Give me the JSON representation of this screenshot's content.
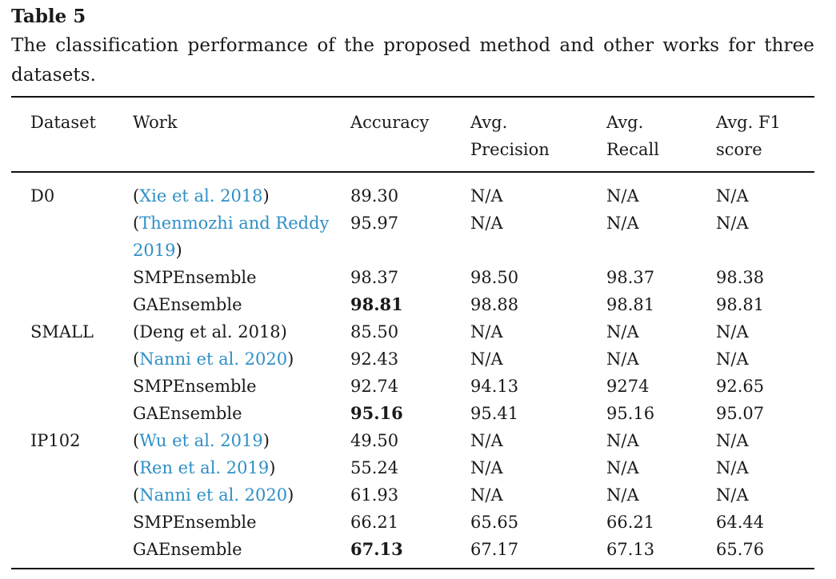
{
  "label": "Table 5",
  "caption": "The classification performance of the proposed method and other works for three datasets.",
  "headers": {
    "dataset": "Dataset",
    "work": "Work",
    "accuracy": "Accuracy",
    "precision_l1": "Avg.",
    "precision_l2": "Precision",
    "recall_l1": "Avg.",
    "recall_l2": "Recall",
    "f1_l1": "Avg. F1",
    "f1_l2": "score"
  },
  "rows": [
    {
      "dataset": "D0",
      "work_open": "(",
      "work_cite": "Xie et al. 2018",
      "work_close": ")",
      "accuracy": "89.30",
      "precision": "N/A",
      "recall": "N/A",
      "f1": "N/A"
    },
    {
      "dataset": "",
      "work_open": "(",
      "work_cite": "Thenmozhi and Reddy 2019",
      "work_close": ")",
      "accuracy": "95.97",
      "precision": "N/A",
      "recall": "N/A",
      "f1": "N/A"
    },
    {
      "dataset": "",
      "work_plain": "SMPEnsemble",
      "accuracy": "98.37",
      "precision": "98.50",
      "recall": "98.37",
      "f1": "98.38"
    },
    {
      "dataset": "",
      "work_plain": "GAEnsemble",
      "accuracy": "98.81",
      "accuracy_bold": true,
      "precision": "98.88",
      "recall": "98.81",
      "f1": "98.81"
    },
    {
      "dataset": "SMALL",
      "work_plain": "(Deng et al. 2018)",
      "accuracy": "85.50",
      "precision": "N/A",
      "recall": "N/A",
      "f1": "N/A"
    },
    {
      "dataset": "",
      "work_open": "(",
      "work_cite": "Nanni et al. 2020",
      "work_close": ")",
      "accuracy": "92.43",
      "precision": "N/A",
      "recall": "N/A",
      "f1": "N/A"
    },
    {
      "dataset": "",
      "work_plain": "SMPEnsemble",
      "accuracy": "92.74",
      "precision": "94.13",
      "recall": "9274",
      "f1": "92.65"
    },
    {
      "dataset": "",
      "work_plain": "GAEnsemble",
      "accuracy": "95.16",
      "accuracy_bold": true,
      "precision": "95.41",
      "recall": "95.16",
      "f1": "95.07"
    },
    {
      "dataset": "IP102",
      "work_open": "(",
      "work_cite": "Wu et al. 2019",
      "work_close": ")",
      "accuracy": "49.50",
      "precision": "N/A",
      "recall": "N/A",
      "f1": "N/A"
    },
    {
      "dataset": "",
      "work_open": "(",
      "work_cite": "Ren et al. 2019",
      "work_close": ")",
      "accuracy": "55.24",
      "precision": "N/A",
      "recall": "N/A",
      "f1": "N/A"
    },
    {
      "dataset": "",
      "work_open": "(",
      "work_cite": "Nanni et al. 2020",
      "work_close": ")",
      "accuracy": "61.93",
      "precision": "N/A",
      "recall": "N/A",
      "f1": "N/A"
    },
    {
      "dataset": "",
      "work_plain": "SMPEnsemble",
      "accuracy": "66.21",
      "precision": "65.65",
      "recall": "66.21",
      "f1": "64.44"
    },
    {
      "dataset": "",
      "work_plain": "GAEnsemble",
      "accuracy": "67.13",
      "accuracy_bold": true,
      "precision": "67.17",
      "recall": "67.13",
      "f1": "65.76"
    }
  ],
  "colors": {
    "citation_link": "#2f8fc6",
    "text": "#1a1a1a"
  }
}
